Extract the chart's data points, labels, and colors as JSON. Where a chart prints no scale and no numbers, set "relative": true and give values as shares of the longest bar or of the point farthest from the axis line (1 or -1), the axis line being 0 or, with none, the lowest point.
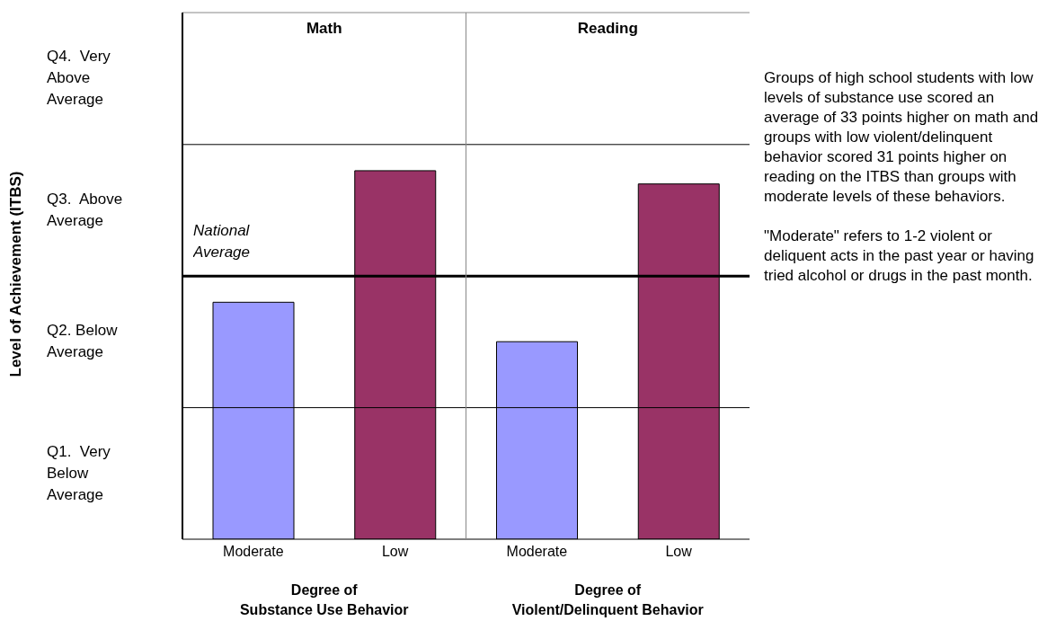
{
  "chart_data": {
    "type": "bar",
    "relative": true,
    "categories": [
      "Moderate",
      "Low",
      "Moderate",
      "Low"
    ],
    "values": [
      0.643,
      1,
      0.536,
      0.964
    ],
    "colors": [
      "#9999ff",
      "#993366",
      "#9999ff",
      "#993366"
    ],
    "ref_lines": [
      {
        "axis": "y",
        "value": 0.357,
        "color": "#000000"
      },
      {
        "axis": "y",
        "value": 0.714,
        "label": "National Average",
        "color": "#000000"
      },
      {
        "axis": "y",
        "value": 1.071,
        "color": "#000000"
      },
      {
        "axis": "y",
        "value": 1.429,
        "color": "#888888"
      }
    ],
    "annotations": [
      "Level of Achievement (ITBS)",
      "Math",
      "Reading",
      "Q4.  Very Above Average",
      "Q3.  Above Average",
      "Q2. Below Average",
      "Q1.  Very Below Average",
      "Degree of\nSubstance Use Behavior",
      "Degree of\nViolent/Delinquent Behavior",
      "Groups of high school students with low levels of substance use scored an average of 33 points higher on math and groups with low violent/delinquent behavior scored 31 points higher on reading on the ITBS than groups with moderate levels of these behaviors.",
      "\"Moderate\" refers to 1-2 violent or deliquent acts in the past year or having tried alcohol or drugs in the past month."
    ]
  }
}
